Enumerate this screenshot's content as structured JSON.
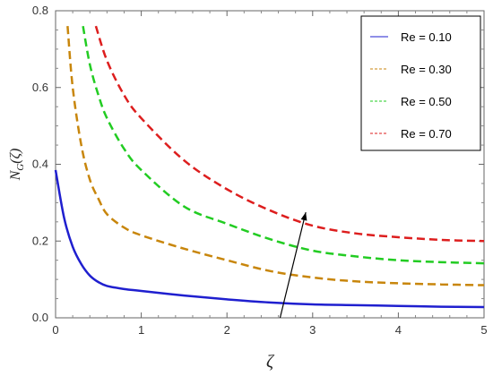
{
  "chart_data": {
    "type": "line",
    "xlabel": "ζ",
    "ylabel": "N_G(ζ)",
    "ylabel_parts": {
      "base": "N",
      "sub": "G",
      "arg": "(ζ)"
    },
    "xlim": [
      0,
      5
    ],
    "ylim": [
      0,
      0.8
    ],
    "x_ticks": [
      "0",
      "1",
      "2",
      "3",
      "4",
      "5"
    ],
    "y_ticks": [
      "0.0",
      "0.2",
      "0.4",
      "0.6",
      "0.8"
    ],
    "grid": false,
    "legend_position": "top-right",
    "series": [
      {
        "name": "Re = 0.10",
        "color": "#1f1fcf",
        "style": "solid",
        "x": [
          0.0,
          0.1,
          0.2,
          0.3,
          0.4,
          0.5,
          0.6,
          0.8,
          1.0,
          1.5,
          2.0,
          2.5,
          3.0,
          3.5,
          4.0,
          4.5,
          5.0
        ],
        "y": [
          0.385,
          0.26,
          0.185,
          0.14,
          0.11,
          0.093,
          0.083,
          0.075,
          0.07,
          0.058,
          0.048,
          0.04,
          0.035,
          0.033,
          0.031,
          0.029,
          0.028
        ]
      },
      {
        "name": "Re = 0.30",
        "color": "#c8860c",
        "style": "dashed",
        "x": [
          0.14,
          0.2,
          0.3,
          0.4,
          0.5,
          0.6,
          0.8,
          1.0,
          1.5,
          2.0,
          2.5,
          3.0,
          3.5,
          4.0,
          4.5,
          5.0
        ],
        "y": [
          0.76,
          0.6,
          0.45,
          0.36,
          0.31,
          0.27,
          0.235,
          0.215,
          0.18,
          0.15,
          0.122,
          0.105,
          0.095,
          0.09,
          0.087,
          0.085
        ]
      },
      {
        "name": "Re = 0.50",
        "color": "#22cc22",
        "style": "dashed",
        "x": [
          0.32,
          0.4,
          0.5,
          0.6,
          0.8,
          1.0,
          1.5,
          2.0,
          2.5,
          3.0,
          3.5,
          4.0,
          4.5,
          5.0
        ],
        "y": [
          0.76,
          0.66,
          0.58,
          0.52,
          0.44,
          0.385,
          0.29,
          0.245,
          0.205,
          0.175,
          0.16,
          0.15,
          0.145,
          0.142
        ]
      },
      {
        "name": "Re = 0.70",
        "color": "#dd1e1e",
        "style": "dashed",
        "x": [
          0.47,
          0.6,
          0.8,
          1.0,
          1.5,
          2.0,
          2.5,
          3.0,
          3.5,
          4.0,
          4.5,
          5.0
        ],
        "y": [
          0.76,
          0.67,
          0.58,
          0.52,
          0.41,
          0.335,
          0.28,
          0.24,
          0.22,
          0.21,
          0.203,
          0.2
        ]
      }
    ],
    "annotation_arrow": {
      "from": [
        2.62,
        0.0
      ],
      "to": [
        2.92,
        0.275
      ]
    }
  }
}
